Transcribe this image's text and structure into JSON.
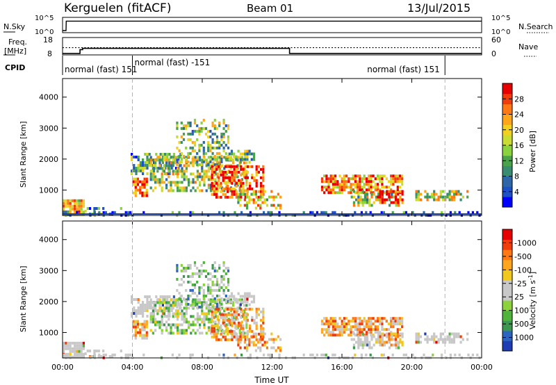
{
  "header": {
    "station": "Kerguelen (fitACF)",
    "beam": "Beam 01",
    "date": "13/Jul/2015"
  },
  "colors": {
    "black": "#000000",
    "grid": "#b4b4b4",
    "white": "#ffffff"
  },
  "chart_data": [
    {
      "type": "line",
      "name": "nsky-nsearch",
      "left_label": "N.Sky",
      "right_label": "N.Search",
      "left_ticks": [
        "10^5",
        "10^0"
      ],
      "right_ticks": [
        "10^5",
        "10^0"
      ],
      "xlim": [
        0,
        24
      ],
      "series": [
        {
          "x": [
            0,
            0.2,
            0.21,
            24
          ],
          "y": [
            0,
            0,
            0.85,
            0.85
          ]
        }
      ]
    },
    {
      "type": "line",
      "name": "freq-nave",
      "left_label": "Freq.",
      "left_unit": "[MHz]",
      "right_label": "Nave",
      "left_ticks": [
        18,
        8
      ],
      "right_ticks": [
        60,
        0
      ],
      "ylim": [
        8,
        18
      ],
      "xlim": [
        0,
        24
      ],
      "freq": {
        "x": [
          0,
          1.0,
          1.0,
          1.15,
          1.15,
          13.0,
          13.0,
          24
        ],
        "y": [
          8.5,
          8.5,
          11.0,
          11.0,
          11.8,
          11.8,
          8.5,
          8.5
        ]
      },
      "nave_level": 12.3
    },
    {
      "type": "table",
      "name": "cpid",
      "label": "CPID",
      "segments": [
        {
          "start": 0,
          "end": 4.0,
          "text": "normal (fast) 151"
        },
        {
          "start": 4.0,
          "end": 21.9,
          "text": "normal (fast) -151"
        },
        {
          "start": 21.9,
          "end": 24,
          "text": "normal (fast) 151"
        }
      ]
    },
    {
      "type": "heatmap",
      "name": "power",
      "ylabel": "Slant Range [km]",
      "yticks": [
        1000,
        2000,
        3000,
        4000
      ],
      "ylim": [
        180,
        4600
      ],
      "xlim": [
        0,
        24
      ],
      "colorbar": {
        "label": "Power [dB]",
        "ticks": [
          4,
          8,
          12,
          16,
          20,
          24,
          28
        ],
        "range": [
          0,
          32
        ],
        "colors": [
          "#0000ff",
          "#1e50c8",
          "#2f66a8",
          "#3a8c70",
          "#4aa24a",
          "#8ad23e",
          "#c8dc34",
          "#f2d020",
          "#ffa51c",
          "#ff7814",
          "#f03c0c",
          "#e60000"
        ]
      }
    },
    {
      "type": "heatmap",
      "name": "velocity",
      "ylabel": "Slant Range [km]",
      "xlabel": "Time UT",
      "yticks": [
        1000,
        2000,
        3000,
        4000
      ],
      "ylim": [
        180,
        4600
      ],
      "xlim": [
        0,
        24
      ],
      "xticks": [
        "00:00",
        "04:00",
        "08:00",
        "12:00",
        "16:00",
        "20:00",
        "00:00"
      ],
      "xtick_values": [
        0,
        4,
        8,
        12,
        16,
        20,
        24
      ],
      "colorbar": {
        "label": "Velocity [m s",
        "label_sup": "-1",
        "label_end": "]",
        "ticks": [
          "1000",
          "500",
          "100",
          "25",
          "-25",
          "-100",
          "-500",
          "-1000"
        ],
        "colors": [
          "#1e3cb4",
          "#2d64c0",
          "#3c9650",
          "#50b43c",
          "#8cd23c",
          "#c8c8c8",
          "#c8c8c8",
          "#f0c81e",
          "#ffa51e",
          "#ff7814",
          "#f03c0a",
          "#e60000"
        ]
      }
    }
  ],
  "guide_times": [
    4.0,
    21.9
  ]
}
